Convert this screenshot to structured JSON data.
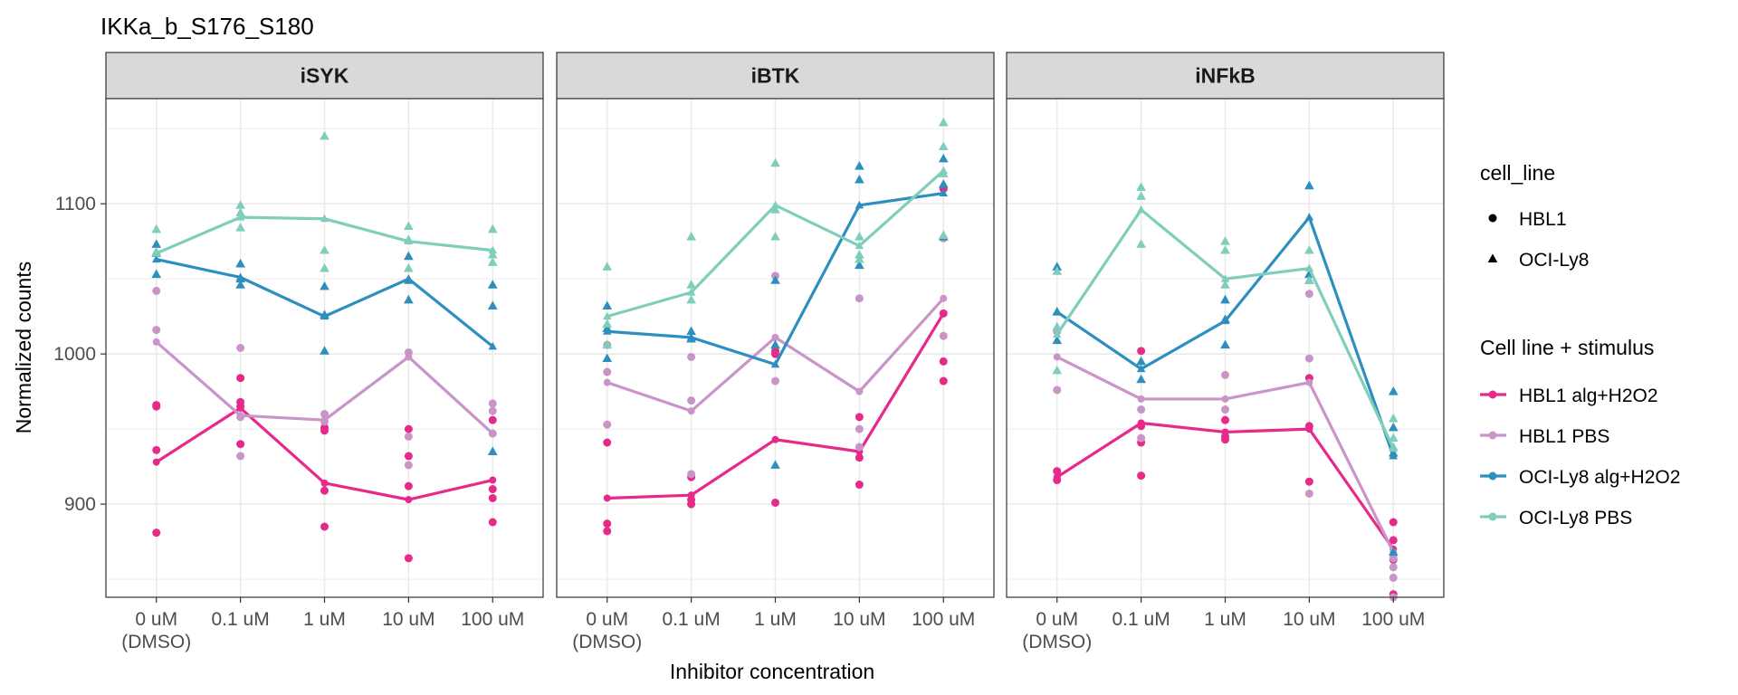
{
  "chart_data": {
    "type": "line",
    "title": "IKKa_b_S176_S180",
    "xlabel": "Inhibitor concentration",
    "ylabel": "Normalized counts",
    "categories": [
      "0 uM\n(DMSO)",
      "0.1 uM",
      "1 uM",
      "10 uM",
      "100 uM"
    ],
    "ylim": [
      838,
      1170
    ],
    "yticks": [
      900,
      1000,
      1100
    ],
    "grid": true,
    "panels": [
      "iSYK",
      "iBTK",
      "iNFkB"
    ],
    "shape_legend": {
      "title": "cell_line",
      "items": [
        {
          "label": "HBL1",
          "shape": "circle"
        },
        {
          "label": "OCI-Ly8",
          "shape": "triangle"
        }
      ]
    },
    "color_legend": {
      "title": "Cell line + stimulus",
      "placement": "right"
    },
    "series": [
      {
        "name": "HBL1 alg+H2O2",
        "color": "#E7298A",
        "shape": "circle",
        "lines": [
          [
            928,
            964,
            914,
            903,
            916
          ],
          [
            904,
            906,
            943,
            935,
            1027
          ],
          [
            918,
            954,
            948,
            950,
            870
          ]
        ],
        "points": [
          [
            [
              966,
              965,
              936,
              881
            ],
            [
              984,
              968,
              940,
              965
            ],
            [
              951,
              949,
              909,
              885
            ],
            [
              932,
              912,
              864,
              950
            ],
            [
              956,
              904,
              910,
              888
            ]
          ],
          [
            [
              941,
              887,
              882
            ],
            [
              918,
              903,
              900
            ],
            [
              1002,
              1000,
              901
            ],
            [
              958,
              931,
              913
            ],
            [
              1110,
              1027,
              995,
              982
            ]
          ],
          [
            [
              922,
              916
            ],
            [
              1002,
              952,
              941,
              919
            ],
            [
              956,
              945,
              943
            ],
            [
              984,
              952,
              915
            ],
            [
              888,
              876,
              863,
              840
            ]
          ]
        ]
      },
      {
        "name": "HBL1 PBS",
        "color": "#C994C7",
        "shape": "circle",
        "lines": [
          [
            1008,
            959,
            956,
            998,
            947
          ],
          [
            981,
            962,
            1011,
            975,
            1037
          ],
          [
            998,
            970,
            970,
            981,
            868
          ]
        ],
        "points": [
          [
            [
              1042,
              1016
            ],
            [
              1004,
              958,
              932
            ],
            [
              960,
              955
            ],
            [
              1001,
              945,
              926
            ],
            [
              967,
              962,
              947
            ]
          ],
          [
            [
              1006,
              988,
              953
            ],
            [
              998,
              969,
              920
            ],
            [
              1052,
              982
            ],
            [
              1037,
              950,
              938
            ],
            [
              1077,
              1012
            ]
          ],
          [
            [
              1015,
              976
            ],
            [
              963,
              944
            ],
            [
              986,
              963
            ],
            [
              1040,
              997,
              907
            ],
            [
              864,
              858,
              851,
              838
            ]
          ]
        ]
      },
      {
        "name": "OCI-Ly8 alg+H2O2",
        "color": "#2C8FBE",
        "shape": "triangle",
        "lines": [
          [
            1063,
            1051,
            1025,
            1050,
            1005
          ],
          [
            1015,
            1011,
            993,
            1099,
            1107
          ],
          [
            1028,
            990,
            1022,
            1091,
            932
          ]
        ],
        "points": [
          [
            [
              1073,
              1067,
              1053
            ],
            [
              1060,
              1050,
              1046
            ],
            [
              1045,
              1026,
              1002
            ],
            [
              1065,
              1049,
              1036
            ],
            [
              1046,
              1032,
              935
            ]
          ],
          [
            [
              1032,
              1017,
              997
            ],
            [
              1015,
              1010
            ],
            [
              1049,
              1006,
              926
            ],
            [
              1125,
              1116,
              1059
            ],
            [
              1130,
              1113,
              1078
            ]
          ],
          [
            [
              1058,
              1028,
              1009
            ],
            [
              995,
              983
            ],
            [
              1036,
              1023,
              1006
            ],
            [
              1112,
              1053,
              1049
            ],
            [
              975,
              951,
              934,
              868
            ]
          ]
        ]
      },
      {
        "name": "OCI-Ly8 PBS",
        "color": "#7FCDBB",
        "shape": "triangle",
        "lines": [
          [
            1067,
            1091,
            1090,
            1075,
            1069
          ],
          [
            1025,
            1041,
            1099,
            1072,
            1122
          ],
          [
            1013,
            1096,
            1050,
            1057,
            937
          ]
        ],
        "points": [
          [
            [
              1083,
              1068
            ],
            [
              1099,
              1094,
              1084
            ],
            [
              1145,
              1069,
              1057
            ],
            [
              1085,
              1076,
              1057
            ],
            [
              1083,
              1066,
              1061
            ]
          ],
          [
            [
              1058,
              1020,
              1006
            ],
            [
              1078,
              1046,
              1036
            ],
            [
              1127,
              1096,
              1078
            ],
            [
              1078,
              1066,
              1063
            ],
            [
              1154,
              1138,
              1120,
              1079
            ]
          ],
          [
            [
              1055,
              1018,
              989
            ],
            [
              1111,
              1105,
              1073
            ],
            [
              1075,
              1069,
              1046
            ],
            [
              1069,
              1049
            ],
            [
              957,
              944,
              938
            ]
          ]
        ]
      }
    ]
  }
}
